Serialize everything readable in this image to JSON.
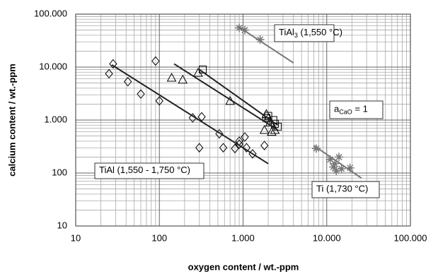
{
  "chart_data": {
    "type": "scatter",
    "x_label": "oxygen content / wt.-ppm",
    "y_label": "calcium content / wt.-ppm",
    "log_x": true,
    "log_y": true,
    "grid": true,
    "xlim": [
      10,
      100000
    ],
    "ylim": [
      10,
      100000
    ],
    "xticks": [
      10,
      100,
      {
        "value": 1000,
        "label": "1.000"
      },
      {
        "value": 10000,
        "label": "10.000"
      },
      {
        "value": 100000,
        "label": "100.000"
      }
    ],
    "yticks": [
      10,
      100,
      {
        "value": 1000,
        "label": "1.000"
      },
      {
        "value": 10000,
        "label": "10.000"
      },
      {
        "value": 100000,
        "label": "100.000"
      }
    ],
    "series": [
      {
        "marker": "diamond",
        "color": "#000000",
        "x": [
          25,
          28,
          42,
          60,
          90,
          100,
          250,
          320,
          300,
          520,
          580,
          800,
          900,
          1050,
          1100,
          1300,
          1800,
          900
        ],
        "values": [
          7500,
          11500,
          5300,
          3100,
          13000,
          2300,
          1100,
          1150,
          300,
          550,
          300,
          290,
          350,
          480,
          300,
          230,
          330,
          400
        ]
      },
      {
        "marker": "triangle",
        "color": "#000000",
        "x": [
          140,
          190,
          290,
          700,
          1900,
          2000,
          2100,
          1800,
          2200,
          2400
        ],
        "values": [
          6300,
          5800,
          7800,
          2300,
          1300,
          1100,
          900,
          650,
          600,
          650
        ]
      },
      {
        "marker": "square",
        "color": "#000000",
        "x": [
          330,
          1900,
          2300,
          2400,
          2600,
          2000
        ],
        "values": [
          9000,
          1100,
          1000,
          850,
          750,
          1200
        ]
      },
      {
        "marker": "star",
        "color": "#777777",
        "x": [
          900,
          1050,
          1600
        ],
        "values": [
          55000,
          50000,
          33000
        ]
      },
      {
        "marker": "star",
        "color": "#777777",
        "x": [
          7500,
          11000,
          12000,
          12500,
          14000,
          13000,
          19000,
          15000
        ],
        "values": [
          290,
          180,
          130,
          150,
          200,
          110,
          125,
          120
        ]
      },
      {
        "marker": "line",
        "color": "#222222",
        "x": [
          27,
          2000
        ],
        "values": [
          11000,
          150
        ]
      },
      {
        "marker": "line",
        "color": "#222222",
        "x": [
          150,
          2600
        ],
        "values": [
          11500,
          650
        ]
      },
      {
        "marker": "line",
        "color": "#222222",
        "x": [
          300,
          2600
        ],
        "values": [
          9000,
          800
        ]
      },
      {
        "marker": "line",
        "color": "#777777",
        "x": [
          850,
          4000
        ],
        "values": [
          60000,
          12000
        ]
      },
      {
        "marker": "line",
        "color": "#777777",
        "x": [
          7000,
          26000
        ],
        "values": [
          330,
          80
        ]
      }
    ],
    "annotations": [
      {
        "parts": [
          "TiAl",
          "3",
          " (1,550 °C)"
        ]
      },
      {
        "parts": [
          "a",
          "CaO",
          " = 1"
        ]
      },
      {
        "parts": [
          "TiAl (1,550 - 1,750 °C)"
        ]
      },
      {
        "parts": [
          "Ti (1,730 °C)"
        ]
      }
    ]
  }
}
